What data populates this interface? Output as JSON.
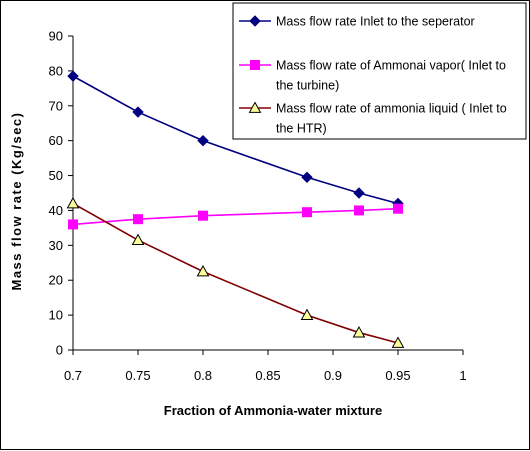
{
  "chart_data": {
    "type": "line",
    "xlabel": "Fraction of Ammonia-water mixture",
    "ylabel": "Mass flow rate (Kg/sec)",
    "xlim": [
      0.7,
      1
    ],
    "ylim": [
      0,
      90
    ],
    "x_ticks": [
      "0.7",
      "0.75",
      "0.8",
      "0.85",
      "0.9",
      "0.95",
      "1"
    ],
    "y_ticks": [
      "0",
      "10",
      "20",
      "30",
      "40",
      "50",
      "60",
      "70",
      "80",
      "90"
    ],
    "grid": false,
    "legend_position": "top-right",
    "series": [
      {
        "name": "Mass flow rate Inlet to the seperator",
        "legend_lines": [
          "Mass flow rate Inlet to the seperator"
        ],
        "color": "#000080",
        "marker": "diamond",
        "x": [
          0.7,
          0.75,
          0.8,
          0.88,
          0.92,
          0.95
        ],
        "y": [
          78.5,
          68.2,
          60,
          49.5,
          45,
          42
        ]
      },
      {
        "name": "Mass flow rate of Ammonai vapor( Inlet to the turbine)",
        "legend_lines": [
          "Mass flow rate of Ammonai vapor( Inlet to",
          "the turbine)"
        ],
        "color": "#FF00FF",
        "marker": "square",
        "x": [
          0.7,
          0.75,
          0.8,
          0.88,
          0.92,
          0.95
        ],
        "y": [
          36,
          37.5,
          38.5,
          39.5,
          40,
          40.5
        ]
      },
      {
        "name": "Mass flow rate of ammonia liquid ( Inlet to the HTR)",
        "legend_lines": [
          "Mass flow rate of ammonia liquid ( Inlet to",
          "the HTR)"
        ],
        "color": "#800000",
        "marker": "triangle",
        "marker_fill": "#FFFF99",
        "x": [
          0.7,
          0.75,
          0.8,
          0.88,
          0.92,
          0.95
        ],
        "y": [
          42,
          31.5,
          22.5,
          10,
          5,
          2
        ]
      }
    ]
  }
}
